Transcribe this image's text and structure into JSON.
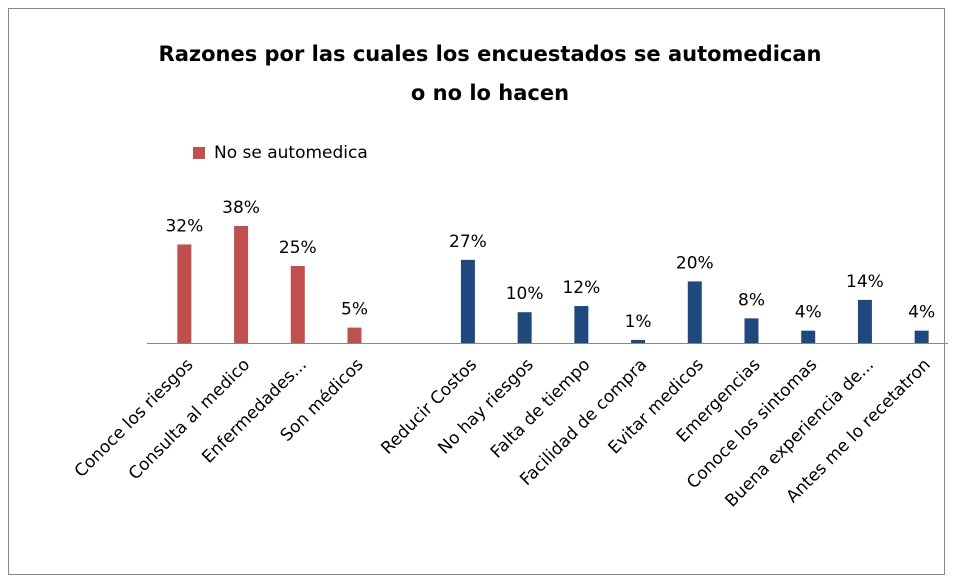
{
  "chart_data": {
    "type": "bar",
    "title": [
      "Razones por las cuales los encuestados se automedican",
      "o no lo hacen"
    ],
    "categories": [
      "Conoce los riesgos",
      "Consulta al medico",
      "Enfermedades...",
      "Son médicos",
      null,
      "Reducir Costos",
      "No hay riesgos",
      "Falta de tiempo",
      "Facilidad de compra",
      "Evitar medicos",
      "Emergencias",
      "Conoce los sintomas",
      "Buena experiencia de...",
      "Antes me lo recetatron"
    ],
    "series": [
      {
        "name": "No se automedica",
        "color": "#c0504d",
        "values": [
          32,
          38,
          25,
          5,
          null,
          null,
          null,
          null,
          null,
          null,
          null,
          null,
          null,
          null
        ],
        "value_labels": [
          "32%",
          "38%",
          "25%",
          "5%",
          null,
          null,
          null,
          null,
          null,
          null,
          null,
          null,
          null,
          null
        ]
      },
      {
        "color": "#1f497d",
        "values": [
          null,
          null,
          null,
          null,
          null,
          27,
          10,
          12,
          1,
          20,
          8,
          4,
          14,
          4
        ],
        "value_labels": [
          null,
          null,
          null,
          null,
          null,
          "27%",
          "10%",
          "12%",
          "1%",
          "20%",
          "8%",
          "4%",
          "14%",
          "4%"
        ]
      }
    ],
    "legend": "top-left"
  }
}
